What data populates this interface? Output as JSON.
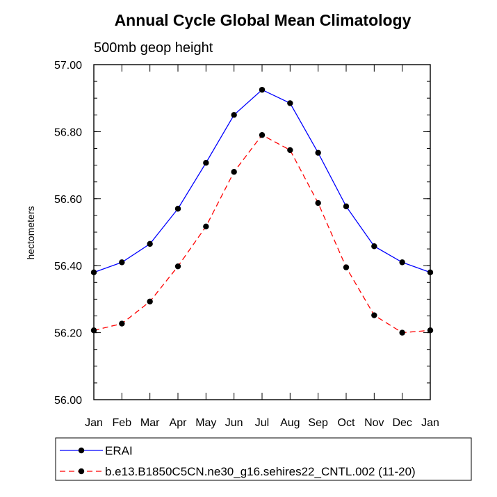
{
  "chart_data": {
    "type": "line",
    "title": "Annual Cycle Global Mean Climatology",
    "subtitle": "500mb geop height",
    "ylabel": "hectometers",
    "xlabel": "",
    "categories": [
      "Jan",
      "Feb",
      "Mar",
      "Apr",
      "May",
      "Jun",
      "Jul",
      "Aug",
      "Sep",
      "Oct",
      "Nov",
      "Dec",
      "Jan"
    ],
    "ylim": [
      56.0,
      57.0
    ],
    "yticks": [
      "56.00",
      "56.20",
      "56.40",
      "56.60",
      "56.80",
      "57.00"
    ],
    "grid": false,
    "legend_position": "bottom",
    "series": [
      {
        "name": "ERAI",
        "color": "#0000ff",
        "dash": "solid",
        "values": [
          56.38,
          56.41,
          56.465,
          56.57,
          56.707,
          56.85,
          56.925,
          56.885,
          56.737,
          56.577,
          56.458,
          56.41,
          56.38
        ]
      },
      {
        "name": "b.e13.B1850C5CN.ne30_g16.sehires22_CNTL.002 (11-20)",
        "color": "#ff0000",
        "dash": "dashed",
        "values": [
          56.207,
          56.227,
          56.293,
          56.398,
          56.517,
          56.68,
          56.79,
          56.745,
          56.587,
          56.395,
          56.252,
          56.2,
          56.207
        ]
      }
    ]
  }
}
